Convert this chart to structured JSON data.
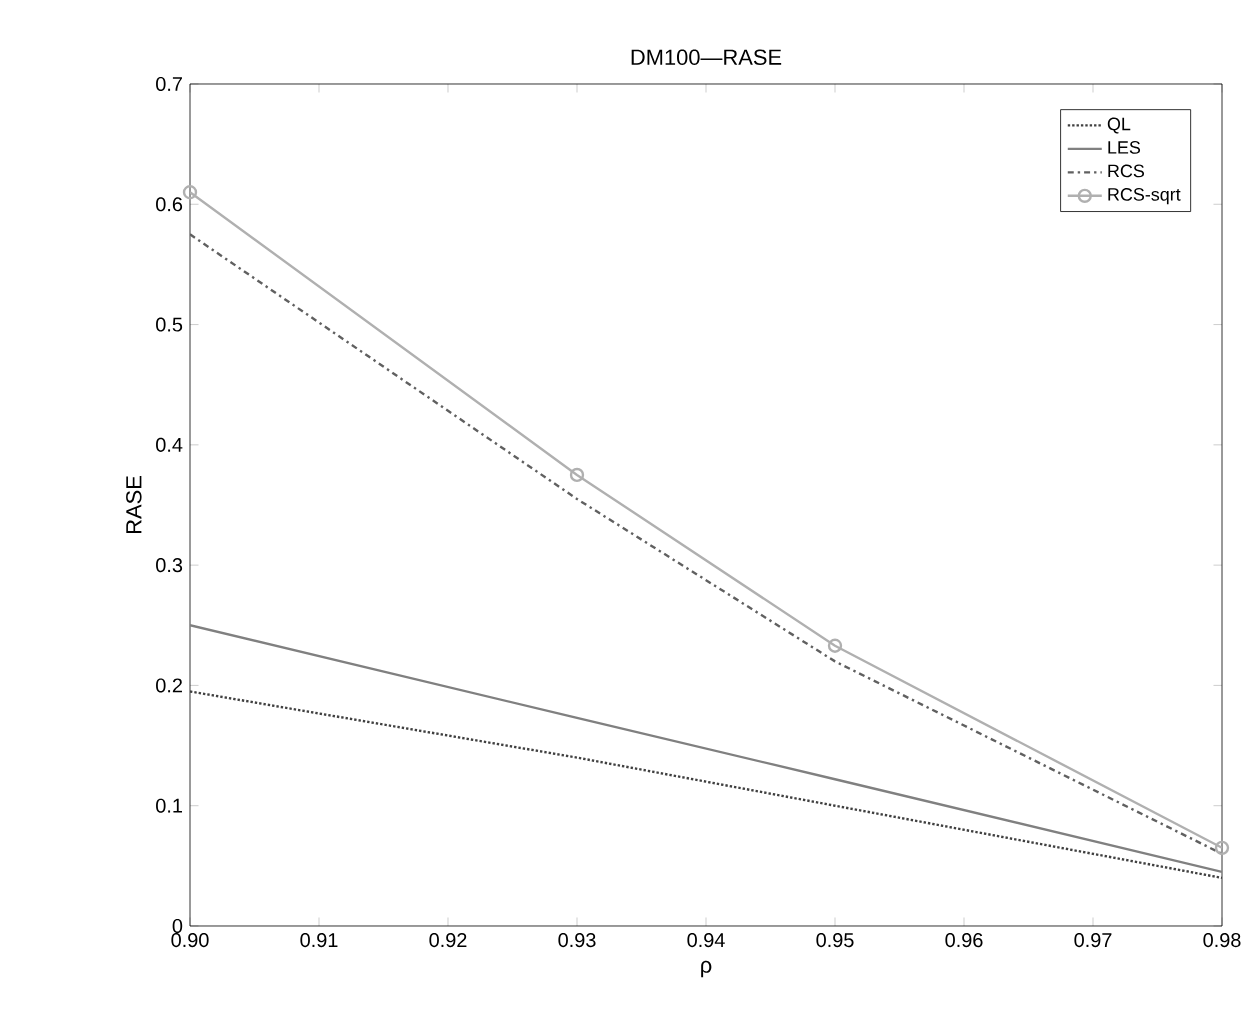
{
  "chart_data": {
    "type": "line",
    "title": "DM100—RASE",
    "xlabel": "ρ",
    "ylabel": "RASE",
    "x": [
      0.9,
      0.93,
      0.95,
      0.98
    ],
    "xlim": [
      0.9,
      0.98
    ],
    "xticks": [
      {
        "value": 0.9,
        "label": "0.90"
      },
      {
        "value": 0.91,
        "label": "0.91"
      },
      {
        "value": 0.92,
        "label": "0.92"
      },
      {
        "value": 0.93,
        "label": "0.93"
      },
      {
        "value": 0.94,
        "label": "0.94"
      },
      {
        "value": 0.95,
        "label": "0.95"
      },
      {
        "value": 0.96,
        "label": "0.96"
      },
      {
        "value": 0.97,
        "label": "0.97"
      },
      {
        "value": 0.98,
        "label": "0.98"
      }
    ],
    "ylim": [
      0,
      0.7
    ],
    "yticks": [
      0,
      0.1,
      0.2,
      0.3,
      0.4,
      0.5,
      0.6,
      0.7
    ],
    "legend": "top right",
    "grid": false,
    "series": [
      {
        "name": "QL",
        "color": "#404040",
        "line_style": "dotted",
        "marker": "none",
        "values": [
          0.195,
          0.14,
          0.1,
          0.04
        ]
      },
      {
        "name": "LES",
        "color": "#808080",
        "line_style": "solid",
        "marker": "none",
        "values": [
          0.25,
          0.173,
          0.122,
          0.045
        ]
      },
      {
        "name": "RCS",
        "color": "#606060",
        "line_style": "dashdot",
        "marker": "none",
        "values": [
          0.575,
          0.355,
          0.22,
          0.06
        ]
      },
      {
        "name": "RCS-sqrt",
        "color": "#b0b0b0",
        "line_style": "solid",
        "marker": "circle",
        "values": [
          0.61,
          0.375,
          0.233,
          0.065
        ]
      }
    ]
  }
}
